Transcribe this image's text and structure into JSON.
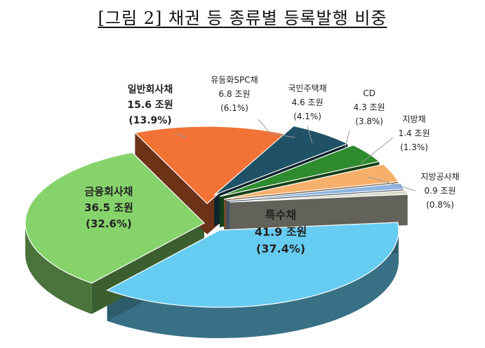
{
  "title": "[그림 2] 채권 등 종류별 등록발행 비중",
  "chart_data": {
    "type": "pie",
    "title": "[그림 2] 채권 등 종류별 등록발행 비중",
    "unit": "조원",
    "slices": [
      {
        "name": "특수채",
        "value": 41.9,
        "value_label": "41.9 조원",
        "pct_label": "(37.4%)",
        "color": "#66CCF2"
      },
      {
        "name": "금융회사채",
        "value": 36.5,
        "value_label": "36.5 조원",
        "pct_label": "(32.6%)",
        "color": "#86D36B"
      },
      {
        "name": "일반회사채",
        "value": 15.6,
        "value_label": "15.6 조원",
        "pct_label": "(13.9%)",
        "color": "#F37236"
      },
      {
        "name": "유동화SPC채",
        "value": 6.8,
        "value_label": "6.8 조원",
        "pct_label": "(6.1%)",
        "color": "#1F5266"
      },
      {
        "name": "국민주택채",
        "value": 4.6,
        "value_label": "4.6 조원",
        "pct_label": "(4.1%)",
        "color": "#2E8B2E"
      },
      {
        "name": "CD",
        "value": 4.3,
        "value_label": "4.3 조원",
        "pct_label": "(3.8%)",
        "color": "#F7B06B"
      },
      {
        "name": "지방채",
        "value": 1.4,
        "value_label": "1.4 조원",
        "pct_label": "(1.3%)",
        "color": "#8EB4E3"
      },
      {
        "name": "지방공사채",
        "value": 0.9,
        "value_label": "0.9 조원",
        "pct_label": "(0.8%)",
        "color": "#D9D9C8"
      }
    ]
  }
}
